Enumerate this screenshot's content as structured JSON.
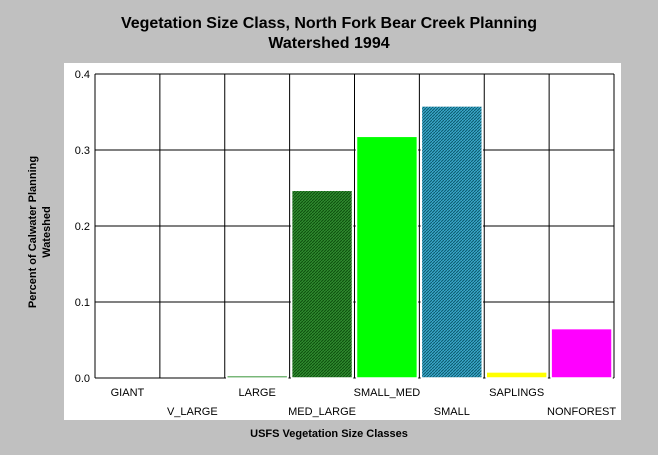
{
  "chart_data": {
    "type": "bar",
    "title_lines": [
      "Vegetation Size Class, North Fork Bear Creek Planning",
      "Watershed 1994"
    ],
    "xlabel": "USFS Vegetation Size Classes",
    "ylabel_lines": [
      "Percent of Calwater Planning",
      "Wateshed"
    ],
    "categories": [
      "GIANT",
      "V_LARGE",
      "LARGE",
      "MED_LARGE",
      "SMALL_MED",
      "SMALL",
      "SAPLINGS",
      "NONFOREST"
    ],
    "values": [
      0,
      0,
      0.003,
      0.247,
      0.318,
      0.358,
      0.008,
      0.065
    ],
    "colors": [
      "#00aa00",
      "#00aa00",
      "#007700",
      "#1f7a1f",
      "#00ff00",
      "#3399aa",
      "#ffff00",
      "#ff00ff"
    ],
    "ylim": [
      0,
      0.4
    ],
    "yticks": [
      "0.0",
      "0.1",
      "0.2",
      "0.3",
      "0.4"
    ],
    "grid": true
  }
}
